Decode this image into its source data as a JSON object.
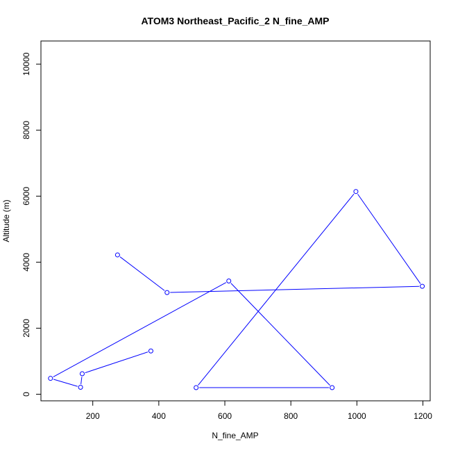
{
  "chart_data": {
    "type": "line",
    "title": "ATOM3 Northeast_Pacific_2 N_fine_AMP",
    "xlabel": "N_fine_AMP",
    "ylabel": "Altitude (m)",
    "xlim": [
      43,
      1222
    ],
    "ylim": [
      -200,
      10700
    ],
    "xticks": [
      200,
      400,
      600,
      800,
      1000,
      1200
    ],
    "yticks": [
      0,
      2000,
      4000,
      6000,
      8000,
      10000
    ],
    "grid": false,
    "series": [
      {
        "color": "#0000ff",
        "marker": "open-circle",
        "points": [
          {
            "x": 275,
            "y": 4220
          },
          {
            "x": 425,
            "y": 3080
          },
          {
            "x": 1198,
            "y": 3270
          },
          {
            "x": 997,
            "y": 6140
          },
          {
            "x": 513,
            "y": 200
          },
          {
            "x": 925,
            "y": 200
          },
          {
            "x": 612,
            "y": 3430
          },
          {
            "x": 72,
            "y": 480
          },
          {
            "x": 163,
            "y": 210
          },
          {
            "x": 168,
            "y": 620
          },
          {
            "x": 376,
            "y": 1310
          }
        ]
      }
    ]
  }
}
